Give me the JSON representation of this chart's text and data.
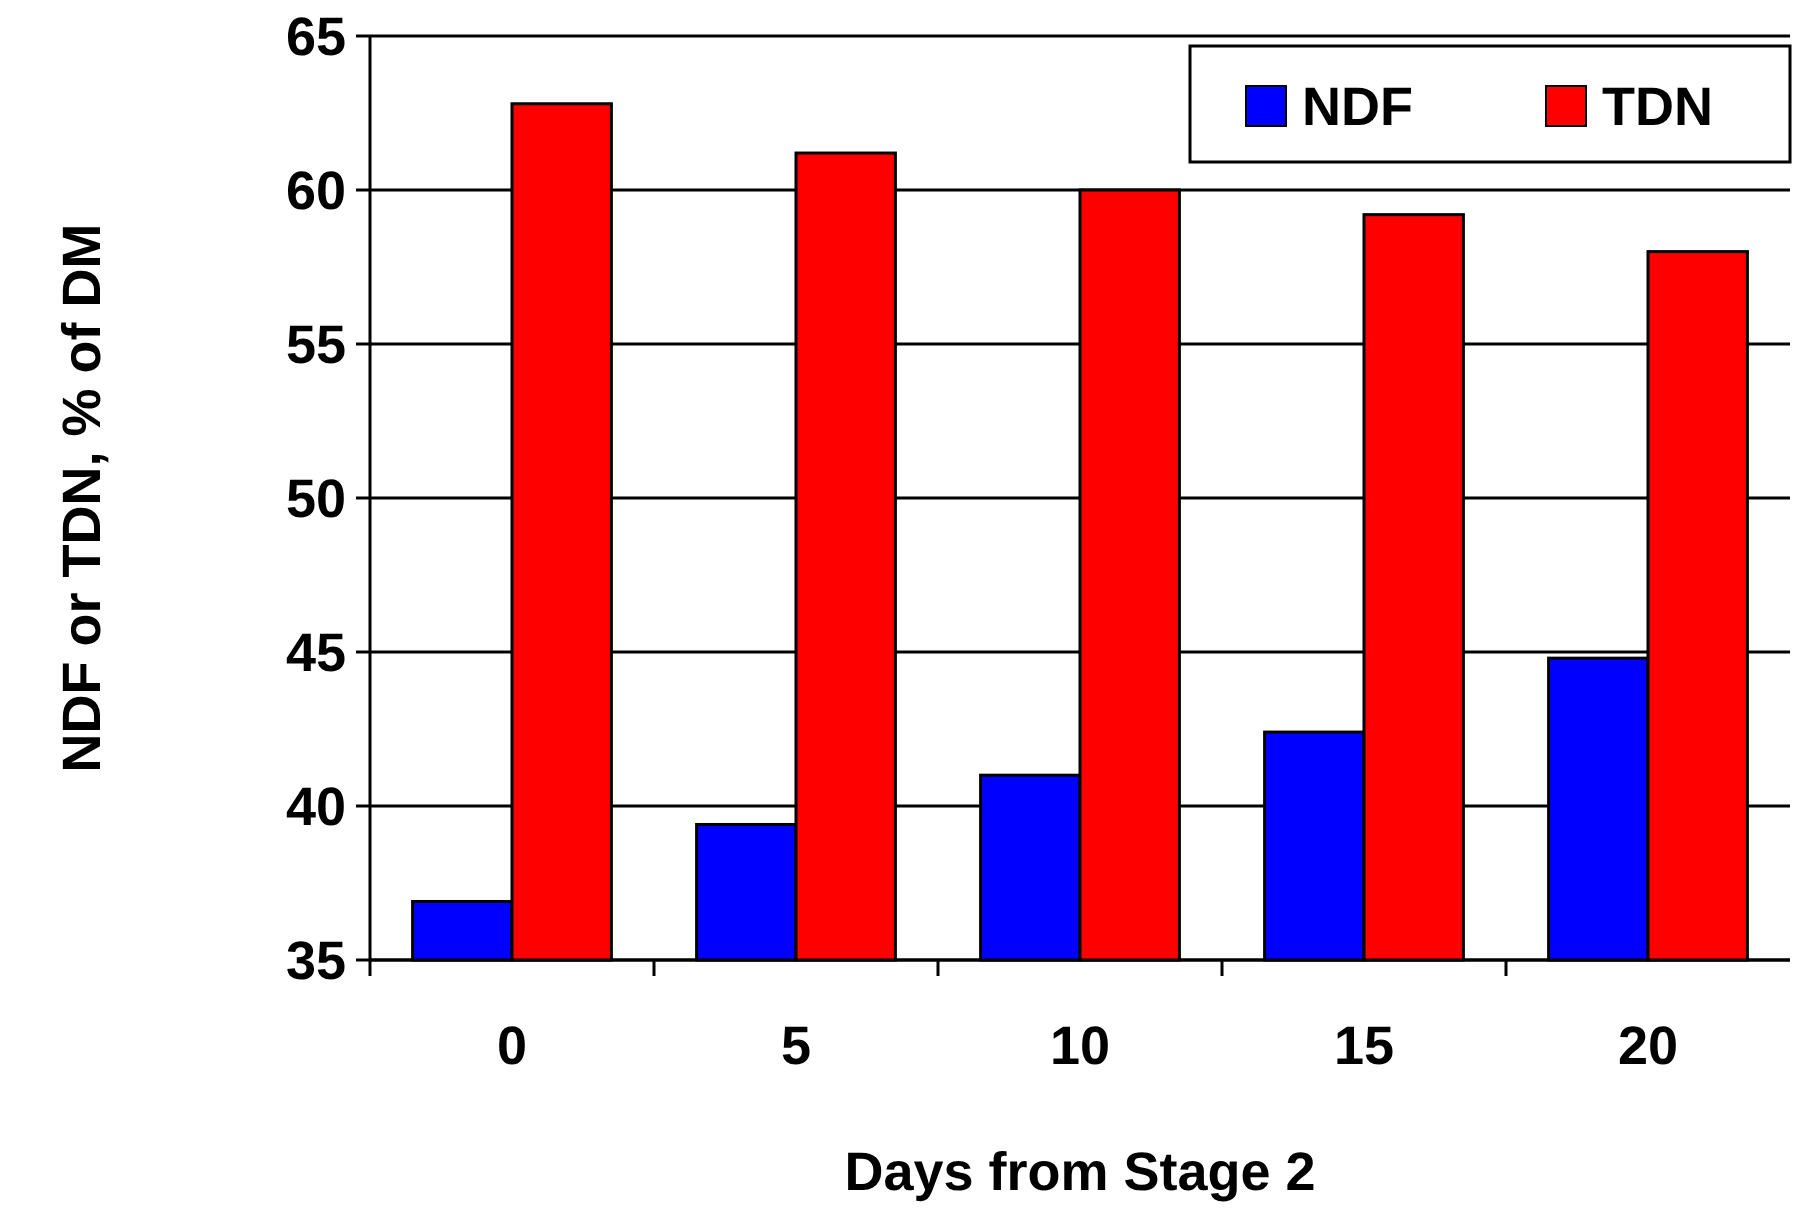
{
  "chart_data": {
    "type": "bar",
    "xlabel": "Days from Stage 2",
    "ylabel": "NDF or TDN, % of DM",
    "categories": [
      "0",
      "5",
      "10",
      "15",
      "20"
    ],
    "series": [
      {
        "name": "NDF",
        "color": "#0000ff",
        "values": [
          36.9,
          39.4,
          41.0,
          42.4,
          44.8
        ]
      },
      {
        "name": "TDN",
        "color": "#ff0000",
        "values": [
          62.8,
          61.2,
          60.0,
          59.2,
          58.0
        ]
      }
    ],
    "ylim": [
      35,
      65
    ],
    "yticks": [
      35,
      40,
      45,
      50,
      55,
      60,
      65
    ],
    "grid": "y",
    "legend": "top right"
  }
}
